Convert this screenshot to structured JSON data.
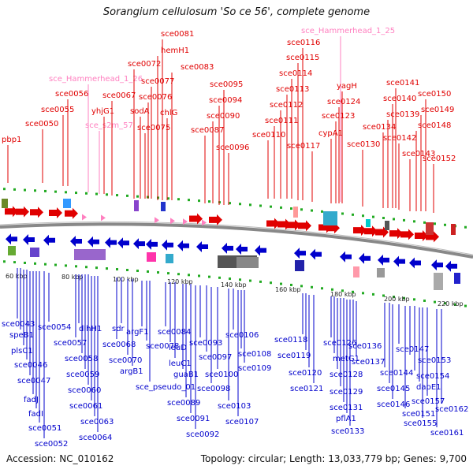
{
  "title": "Sorangium cellulosum 'So ce 56', complete genome",
  "footer": {
    "accession": "Accession: NC_010162",
    "topology": "Topology: circular; Length: 13,033,779 bp; Genes: 9,700"
  },
  "colors": {
    "forward": "#e00000",
    "reverse": "#0000cc",
    "rna": "#ff80c0",
    "tick": "#22aa22",
    "backbone": "#888888"
  },
  "kbp_ticks": [
    "60 kbp",
    "80 kbp",
    "100 kbp",
    "120 kbp",
    "140 kbp",
    "160 kbp",
    "180 kbp",
    "200 kbp",
    "220 kbp"
  ],
  "top_labels": [
    {
      "t": "pbp1",
      "c": "fwd"
    },
    {
      "t": "sce0050",
      "c": "fwd"
    },
    {
      "t": "sce0055",
      "c": "fwd"
    },
    {
      "t": "sce0056",
      "c": "fwd"
    },
    {
      "t": "sce_Hammerhead_1_26",
      "c": "rna"
    },
    {
      "t": "sce_s2m_57",
      "c": "rna"
    },
    {
      "t": "yhjG1",
      "c": "fwd"
    },
    {
      "t": "sce0067",
      "c": "fwd"
    },
    {
      "t": "sce0072",
      "c": "fwd"
    },
    {
      "t": "sodA",
      "c": "fwd"
    },
    {
      "t": "sce0075",
      "c": "fwd"
    },
    {
      "t": "sce0076",
      "c": "fwd"
    },
    {
      "t": "sce0077",
      "c": "fwd"
    },
    {
      "t": "hemH1",
      "c": "fwd"
    },
    {
      "t": "sce0081",
      "c": "fwd"
    },
    {
      "t": "chlG",
      "c": "fwd"
    },
    {
      "t": "sce0083",
      "c": "fwd"
    },
    {
      "t": "sce0087",
      "c": "fwd"
    },
    {
      "t": "sce0090",
      "c": "fwd"
    },
    {
      "t": "sce0094",
      "c": "fwd"
    },
    {
      "t": "sce0095",
      "c": "fwd"
    },
    {
      "t": "sce0096",
      "c": "fwd"
    },
    {
      "t": "sce0110",
      "c": "fwd"
    },
    {
      "t": "sce0111",
      "c": "fwd"
    },
    {
      "t": "sce0112",
      "c": "fwd"
    },
    {
      "t": "sce0113",
      "c": "fwd"
    },
    {
      "t": "sce0114",
      "c": "fwd"
    },
    {
      "t": "sce0115",
      "c": "fwd"
    },
    {
      "t": "sce0116",
      "c": "fwd"
    },
    {
      "t": "sce_Hammerhead_1_25",
      "c": "rna"
    },
    {
      "t": "sce0117",
      "c": "fwd"
    },
    {
      "t": "cypA1",
      "c": "fwd"
    },
    {
      "t": "sce0123",
      "c": "fwd"
    },
    {
      "t": "sce0124",
      "c": "fwd"
    },
    {
      "t": "yagH",
      "c": "fwd"
    },
    {
      "t": "sce0130",
      "c": "fwd"
    },
    {
      "t": "sce0134",
      "c": "fwd"
    },
    {
      "t": "sce0139",
      "c": "fwd"
    },
    {
      "t": "sce0140",
      "c": "fwd"
    },
    {
      "t": "sce0141",
      "c": "fwd"
    },
    {
      "t": "sce0142",
      "c": "fwd"
    },
    {
      "t": "sce0143",
      "c": "fwd"
    },
    {
      "t": "sce0148",
      "c": "fwd"
    },
    {
      "t": "sce0149",
      "c": "fwd"
    },
    {
      "t": "sce0150",
      "c": "fwd"
    },
    {
      "t": "sce0152",
      "c": "fwd"
    }
  ],
  "bottom_labels": [
    "sce0043",
    "speB1",
    "plsC1",
    "sce0046",
    "sce0047",
    "fadJ",
    "fadI",
    "sce0051",
    "sce0052",
    "sce0054",
    "sce0057",
    "dlhH1",
    "sce0058",
    "sce0059",
    "sce0060",
    "sce0061",
    "sce0063",
    "sce0064",
    "sdr",
    "sce0068",
    "sce0070",
    "argB1",
    "argF1",
    "sce0078",
    "sce_pseudo_01",
    "sce0084",
    "leuD",
    "leuC1",
    "guaB1",
    "sce0089",
    "sce0091",
    "sce0092",
    "sce0093",
    "sce0097",
    "sce0098",
    "sce0100",
    "sce0103",
    "sce0106",
    "sce0107",
    "sce0108",
    "sce0109",
    "sce0118",
    "sce0119",
    "sce0120",
    "sce0121",
    "sce0126",
    "metG1",
    "sce0128",
    "sce0129",
    "sce0131",
    "pflA1",
    "sce0133",
    "sce0136",
    "sce0137",
    "sce0144",
    "sce0145",
    "sce0146",
    "sce0147",
    "sce0151",
    "sce0153",
    "sce0154",
    "dapE1",
    "sce0155",
    "sce0157",
    "sce0161",
    "sce0162"
  ]
}
